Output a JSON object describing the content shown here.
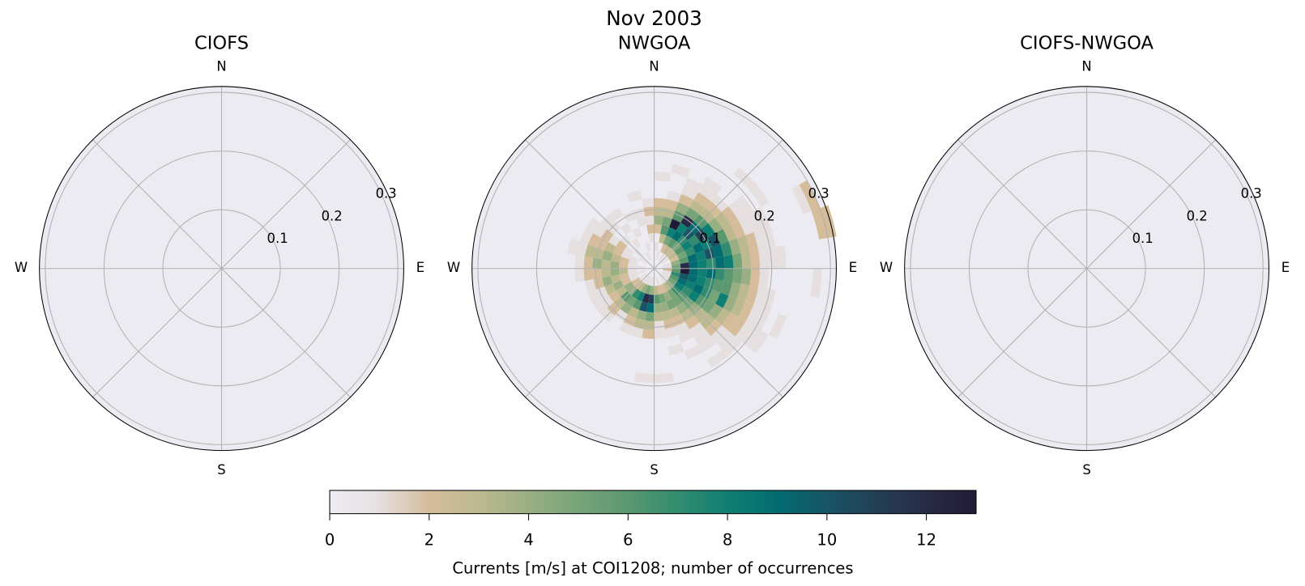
{
  "chart_data": {
    "type": "heatmap",
    "subtype": "polar-histogram",
    "suptitle": "Nov 2003",
    "direction_convention": "compass, clockwise from N",
    "theta_bin_deg": 10,
    "r_bin": 0.015,
    "rlim": [
      0,
      0.31
    ],
    "rticks": [
      "0.1",
      "0.2",
      "0.3"
    ],
    "rtick_values": [
      0.1,
      0.2,
      0.3
    ],
    "cardinals": {
      "n": "N",
      "e": "E",
      "s": "S",
      "w": "W"
    },
    "panels": [
      {
        "title": "CIOFS",
        "counts": []
      },
      {
        "title": "NWGOA",
        "counts": [
          [
            0,
            0,
            1,
            0,
            2,
            4,
            3,
            2,
            0,
            0,
            1
          ],
          [
            0,
            1,
            0,
            3,
            6,
            5,
            3,
            2,
            1,
            0,
            0,
            1
          ],
          [
            0,
            0,
            2,
            5,
            8,
            13,
            6,
            4,
            2,
            1,
            1
          ],
          [
            0,
            1,
            3,
            6,
            9,
            8,
            12,
            5,
            3,
            2,
            1,
            1
          ],
          [
            0,
            0,
            2,
            5,
            7,
            10,
            9,
            6,
            3,
            2,
            1,
            0,
            0,
            0,
            1
          ],
          [
            0,
            1,
            3,
            6,
            8,
            7,
            11,
            8,
            4,
            3,
            2,
            1,
            1,
            0,
            1
          ],
          [
            0,
            0,
            2,
            5,
            7,
            9,
            8,
            10,
            6,
            3,
            2,
            1,
            1,
            1,
            0,
            0,
            0,
            0,
            1,
            2
          ],
          [
            0,
            1,
            4,
            6,
            9,
            8,
            10,
            9,
            7,
            4,
            3,
            2,
            1,
            1,
            0,
            0,
            0,
            0,
            0,
            2,
            2
          ],
          [
            0,
            1,
            5,
            12,
            9,
            8,
            7,
            9,
            8,
            5,
            3,
            2,
            1,
            1,
            1
          ],
          [
            0,
            2,
            6,
            13,
            9,
            8,
            9,
            7,
            6,
            5,
            4,
            2,
            1,
            0,
            0,
            0,
            0,
            0,
            1
          ],
          [
            0,
            1,
            7,
            10,
            9,
            8,
            7,
            6,
            6,
            4,
            3,
            2,
            1,
            1
          ],
          [
            0,
            1,
            6,
            9,
            8,
            9,
            7,
            5,
            8,
            4,
            3,
            2,
            1,
            1,
            0,
            1
          ],
          [
            0,
            1,
            5,
            8,
            7,
            8,
            6,
            5,
            4,
            3,
            2,
            2,
            1,
            1,
            1
          ],
          [
            0,
            0,
            4,
            7,
            6,
            5,
            4,
            3,
            3,
            2,
            1,
            1,
            1
          ],
          [
            0,
            1,
            3,
            5,
            5,
            4,
            3,
            2,
            1,
            1,
            1,
            0,
            1
          ],
          [
            0,
            0,
            2,
            4,
            5,
            3,
            2,
            1,
            1,
            0,
            1
          ],
          [
            0,
            1,
            2,
            5,
            4,
            3,
            2,
            1,
            0,
            1
          ],
          [
            0,
            0,
            3,
            6,
            4,
            3,
            1,
            1,
            0,
            0,
            0,
            0,
            1
          ],
          [
            0,
            1,
            4,
            11,
            9,
            5,
            3,
            2,
            0,
            0,
            0,
            0,
            1
          ],
          [
            0,
            1,
            5,
            12,
            10,
            4,
            3,
            1
          ],
          [
            0,
            1,
            4,
            8,
            6,
            3,
            2,
            1
          ],
          [
            0,
            1,
            3,
            7,
            5,
            4,
            1
          ],
          [
            0,
            0,
            2,
            4,
            6,
            3,
            2,
            1
          ],
          [
            0,
            1,
            2,
            4,
            3,
            2,
            1,
            1
          ],
          [
            0,
            0,
            1,
            2,
            4,
            3,
            1,
            1
          ],
          [
            0,
            1,
            1,
            2,
            3,
            4,
            2,
            1
          ],
          [
            0,
            0,
            1,
            3,
            4,
            3,
            2,
            2,
            1
          ],
          [
            0,
            1,
            1,
            2,
            4,
            3,
            4,
            2,
            1
          ],
          [
            0,
            0,
            1,
            2,
            3,
            4,
            3,
            3,
            1,
            1
          ],
          [
            0,
            0,
            1,
            1,
            2,
            3,
            2,
            2,
            1
          ],
          [
            0,
            1,
            0,
            1,
            2,
            1,
            2,
            1,
            1
          ],
          [
            0,
            0,
            1,
            0,
            1,
            0,
            1,
            1
          ],
          [
            0,
            0,
            0,
            1,
            0,
            1,
            0,
            1
          ],
          [
            0,
            1,
            0,
            0,
            1,
            0,
            1,
            0
          ],
          [
            0,
            0,
            1,
            0,
            0,
            1,
            1,
            0,
            1
          ],
          [
            0,
            0,
            0,
            1,
            2,
            1,
            2,
            1
          ]
        ]
      },
      {
        "title": "CIOFS-NWGOA",
        "counts": []
      }
    ],
    "colorbar": {
      "label": "Currents [m/s] at COI1208; number of occurrences",
      "range": [
        0,
        13
      ],
      "ticks": [
        "0",
        "2",
        "4",
        "6",
        "8",
        "10",
        "12"
      ],
      "tick_values": [
        0,
        2,
        4,
        6,
        8,
        10,
        12
      ],
      "colormap_stops": [
        "#eeedf3",
        "#e5dfe0",
        "#d5bc9b",
        "#bcb98f",
        "#9aae84",
        "#77a479",
        "#5b9870",
        "#338c6f",
        "#0f7f73",
        "#036c70",
        "#185466",
        "#243f55",
        "#272b45",
        "#211a37"
      ]
    }
  }
}
